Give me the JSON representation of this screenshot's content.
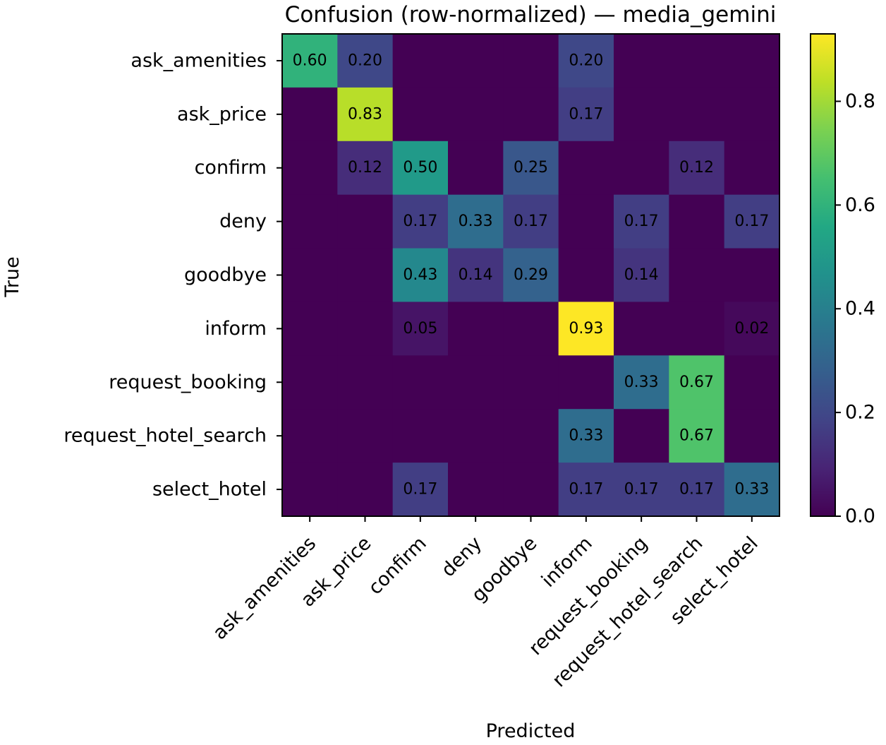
{
  "chart_data": {
    "type": "heatmap",
    "title": "Confusion (row-normalized) — media_gemini",
    "xlabel": "Predicted",
    "ylabel": "True",
    "labels": [
      "ask_amenities",
      "ask_price",
      "confirm",
      "deny",
      "goodbye",
      "inform",
      "request_booking",
      "request_hotel_search",
      "select_hotel"
    ],
    "matrix": [
      [
        0.6,
        0.2,
        0.0,
        0.0,
        0.0,
        0.2,
        0.0,
        0.0,
        0.0
      ],
      [
        0.0,
        0.83,
        0.0,
        0.0,
        0.0,
        0.17,
        0.0,
        0.0,
        0.0
      ],
      [
        0.0,
        0.12,
        0.5,
        0.0,
        0.25,
        0.0,
        0.0,
        0.12,
        0.0
      ],
      [
        0.0,
        0.0,
        0.17,
        0.33,
        0.17,
        0.0,
        0.17,
        0.0,
        0.17
      ],
      [
        0.0,
        0.0,
        0.43,
        0.14,
        0.29,
        0.0,
        0.14,
        0.0,
        0.0
      ],
      [
        0.0,
        0.0,
        0.05,
        0.0,
        0.0,
        0.93,
        0.0,
        0.0,
        0.02
      ],
      [
        0.0,
        0.0,
        0.0,
        0.0,
        0.0,
        0.0,
        0.33,
        0.67,
        0.0
      ],
      [
        0.0,
        0.0,
        0.0,
        0.0,
        0.0,
        0.33,
        0.0,
        0.67,
        0.0
      ],
      [
        0.0,
        0.0,
        0.17,
        0.0,
        0.0,
        0.17,
        0.17,
        0.17,
        0.33
      ]
    ],
    "annotations": [
      [
        "0.60",
        "0.20",
        "",
        "",
        "",
        "0.20",
        "",
        "",
        ""
      ],
      [
        "",
        "0.83",
        "",
        "",
        "",
        "0.17",
        "",
        "",
        ""
      ],
      [
        "",
        "0.12",
        "0.50",
        "",
        "0.25",
        "",
        "",
        "0.12",
        ""
      ],
      [
        "",
        "",
        "0.17",
        "0.33",
        "0.17",
        "",
        "0.17",
        "",
        "0.17"
      ],
      [
        "",
        "",
        "0.43",
        "0.14",
        "0.29",
        "",
        "0.14",
        "",
        ""
      ],
      [
        "",
        "",
        "0.05",
        "",
        "",
        "0.93",
        "",
        "",
        "0.02"
      ],
      [
        "",
        "",
        "",
        "",
        "",
        "",
        "0.33",
        "0.67",
        ""
      ],
      [
        "",
        "",
        "",
        "",
        "",
        "0.33",
        "",
        "0.67",
        ""
      ],
      [
        "",
        "",
        "0.17",
        "",
        "",
        "0.17",
        "0.17",
        "0.17",
        "0.33"
      ]
    ],
    "colormap": "viridis",
    "vmin": 0.0,
    "vmax": 0.93,
    "colorbar_ticks": [
      0.0,
      0.2,
      0.4,
      0.6,
      0.8
    ],
    "colorbar_tick_labels": [
      "0.0",
      "0.2",
      "0.4",
      "0.6",
      "0.8"
    ],
    "grid": false
  }
}
